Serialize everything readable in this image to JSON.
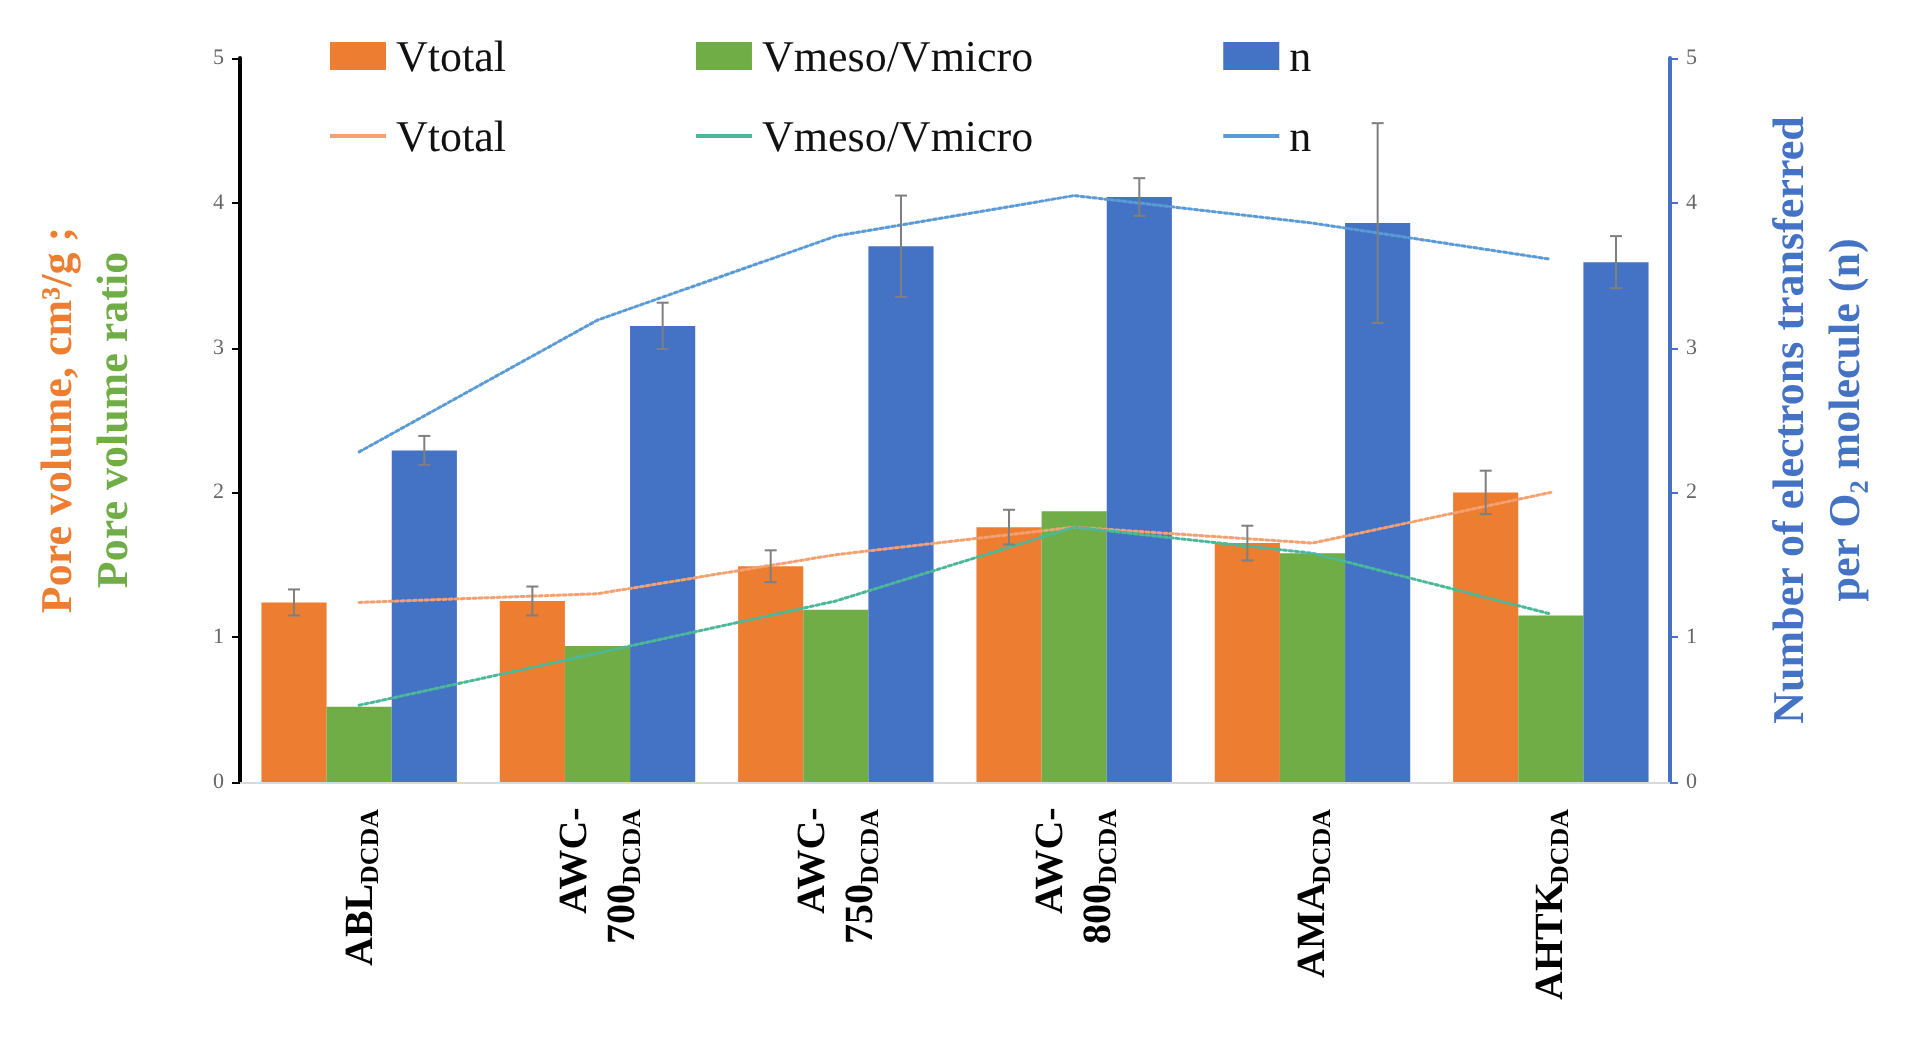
{
  "chart_data": {
    "type": "bar",
    "categories": [
      "ABL$_{DCDA}$",
      "AWC-700$_{DCDA}$",
      "AWC-750$_{DCDA}$",
      "AWC-800$_{DCDA}$",
      "AMA$_{DCDA}$",
      "AHTK$_{DCDA}$"
    ],
    "series": [
      {
        "name": "Vtotal",
        "color": "#ed7d31",
        "values": [
          1.24,
          1.25,
          1.49,
          1.76,
          1.65,
          2.0
        ],
        "errors": [
          0.09,
          0.1,
          0.11,
          0.12,
          0.12,
          0.15
        ]
      },
      {
        "name": "Vmeso/Vmicro",
        "color": "#70ad47",
        "values": [
          0.52,
          0.94,
          1.19,
          1.87,
          1.58,
          1.15
        ]
      },
      {
        "name": "n",
        "color": "#4472c4",
        "axis": "y2",
        "values": [
          2.29,
          3.15,
          3.7,
          4.04,
          3.86,
          3.59
        ],
        "errors": [
          0.1,
          0.16,
          0.35,
          0.13,
          0.69,
          0.18
        ]
      },
      {
        "name": "Vtotal",
        "type": "line",
        "color": "#f4a070",
        "line_style": "dotted",
        "marker": "none",
        "values": [
          1.24,
          1.3,
          1.57,
          1.76,
          1.65,
          2.0
        ]
      },
      {
        "name": "Vmeso/Vmicro",
        "type": "line",
        "color": "#4cb89a",
        "line_style": "dotted",
        "marker": "none",
        "values": [
          0.53,
          0.89,
          1.25,
          1.76,
          1.58,
          1.16
        ]
      },
      {
        "name": "n",
        "type": "line",
        "color": "#5b9bd5",
        "axis": "y2",
        "line_style": "dotted",
        "marker": "none",
        "values": [
          2.28,
          3.19,
          3.77,
          4.05,
          3.86,
          3.61
        ]
      }
    ],
    "ylabel": "Pore volume, cm³/g ;\nPore volume ratio",
    "y2label": "Number of electrons transferred\nper O₂ molecule (n)",
    "ylim": [
      0,
      5
    ],
    "yticks": [
      0,
      1,
      2,
      3,
      4,
      5
    ],
    "y2lim": [
      0,
      5
    ],
    "y2ticks": [
      0,
      1,
      2,
      3,
      4,
      5
    ],
    "grid": false,
    "legend": "top"
  }
}
